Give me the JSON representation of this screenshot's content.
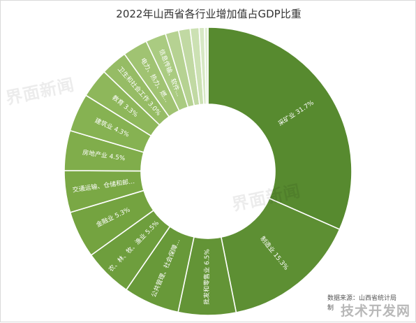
{
  "chart_data": {
    "type": "pie",
    "title": "2022年山西省各行业增加值占GDP比重",
    "slices": [
      {
        "label": "采矿业",
        "value": 31.7,
        "value_text": "31.7%",
        "color": "#578a2f"
      },
      {
        "label": "制造业",
        "value": 15.3,
        "value_text": "15.3%",
        "color": "#5d8f33"
      },
      {
        "label": "批发和零售业",
        "value": 6.5,
        "value_text": "6.5%",
        "color": "#639436"
      },
      {
        "label": "公共管理、社会保障和社会组织",
        "value": 6.3,
        "value_text": "6.3%",
        "color": "#689939"
      },
      {
        "label": "农、林、牧、渔业",
        "value": 5.5,
        "value_text": "5.5%",
        "color": "#6e9e3d"
      },
      {
        "label": "金融业",
        "value": 5.3,
        "value_text": "5.3%",
        "color": "#74a340"
      },
      {
        "label": "交通运输、仓储和邮政业",
        "value": 4.7,
        "value_text": "4.7%",
        "color": "#7aa845"
      },
      {
        "label": "房地产业",
        "value": 4.5,
        "value_text": "4.5%",
        "color": "#80ad4b"
      },
      {
        "label": "建筑业",
        "value": 4.3,
        "value_text": "4.3%",
        "color": "#86b252"
      },
      {
        "label": "教育",
        "value": 3.3,
        "value_text": "3.3%",
        "color": "#8eb75b"
      },
      {
        "label": "卫生和社会工作",
        "value": 3.0,
        "value_text": "3.0%",
        "color": "#96bc65"
      },
      {
        "label": "电力、热力、燃...",
        "value": 2.8,
        "value_text": "",
        "color": "#a0c372"
      },
      {
        "label": "信息传输、软件...",
        "value": 2.3,
        "value_text": "",
        "color": "#aacb81"
      },
      {
        "label": "",
        "value": 1.5,
        "value_text": "",
        "color": "#b6d292"
      },
      {
        "label": "",
        "value": 1.3,
        "value_text": "",
        "color": "#c1d9a3"
      },
      {
        "label": "",
        "value": 1.0,
        "value_text": "",
        "color": "#cce1b3"
      },
      {
        "label": "",
        "value": 0.6,
        "value_text": "",
        "color": "#d7e8c4"
      },
      {
        "label": "",
        "value": 0.4,
        "value_text": "",
        "color": "#e1eed3"
      }
    ],
    "legend": "none"
  },
  "source_text": "数据来源：山西省统计局",
  "producer_text": "制",
  "watermark_text": "界面新闻",
  "corner_badge_text": "技术开发网"
}
